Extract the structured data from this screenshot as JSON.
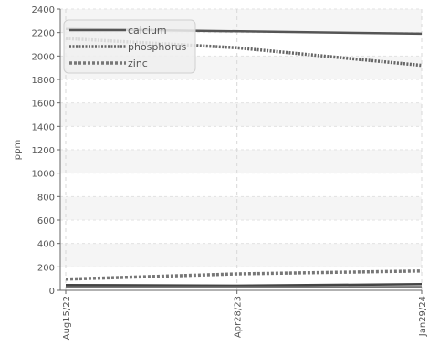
{
  "chart_data": {
    "type": "line",
    "ylabel": "ppm",
    "ylim": [
      0,
      2400
    ],
    "yticks": [
      0,
      200,
      400,
      600,
      800,
      1000,
      1200,
      1400,
      1600,
      1800,
      2000,
      2200,
      2400
    ],
    "x_dates": [
      "2022-08-15",
      "2023-04-28",
      "2024-01-29"
    ],
    "x_tick_labels": [
      "Aug15/22",
      "Apr28/23",
      "Jan29/24"
    ],
    "grid": true,
    "legend": "top-left",
    "series": [
      {
        "name": "calcium",
        "style": "solid",
        "color": "#555555",
        "points": [
          [
            "2022-08-15",
            2230
          ],
          [
            "2024-01-29",
            2190
          ]
        ]
      },
      {
        "name": "phosphorus",
        "style": "dotted",
        "color": "#666666",
        "points": [
          [
            "2022-08-15",
            2150
          ],
          [
            "2023-04-28",
            2070
          ],
          [
            "2024-01-29",
            1920
          ]
        ]
      },
      {
        "name": "zinc",
        "style": "dashed",
        "color": "#777777",
        "points": [
          [
            "2022-08-15",
            95
          ],
          [
            "2023-04-28",
            140
          ],
          [
            "2024-01-29",
            165
          ]
        ]
      },
      {
        "name": "",
        "style": "solid",
        "color": "#444444",
        "points": [
          [
            "2022-08-15",
            45
          ],
          [
            "2023-04-28",
            40
          ],
          [
            "2024-01-29",
            52
          ]
        ]
      },
      {
        "name": "",
        "style": "solid",
        "color": "#777777",
        "points": [
          [
            "2022-08-15",
            25
          ],
          [
            "2023-04-28",
            25
          ],
          [
            "2024-01-29",
            28
          ]
        ]
      }
    ]
  }
}
